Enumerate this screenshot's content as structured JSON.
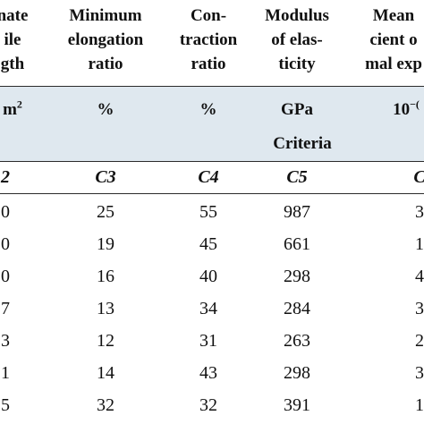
{
  "header": {
    "col1": [
      "nate",
      "ile",
      "gth"
    ],
    "col2": [
      "Minimum",
      "elongation",
      "ratio"
    ],
    "col3": [
      "Con-",
      "traction",
      "ratio"
    ],
    "col4": [
      "Modulus",
      "of elas-",
      "ticity"
    ],
    "col5": [
      "Mean",
      "cient o",
      "mal exp"
    ]
  },
  "units": {
    "col1_base": "m",
    "col1_sup": "2",
    "col2": "%",
    "col3": "%",
    "col4": "GPa",
    "col5_base": "10",
    "col5_sup": "−("
  },
  "criteria_label": "Criteria",
  "codes": [
    "2",
    "C3",
    "C4",
    "C5",
    "C"
  ],
  "rows": [
    [
      "0",
      "25",
      "55",
      "987",
      "3"
    ],
    [
      "0",
      "19",
      "45",
      "661",
      "1"
    ],
    [
      "0",
      "16",
      "40",
      "298",
      "4"
    ],
    [
      "7",
      "13",
      "34",
      "284",
      "3"
    ],
    [
      "3",
      "12",
      "31",
      "263",
      "2"
    ],
    [
      "1",
      "14",
      "43",
      "298",
      "3"
    ],
    [
      "5",
      "32",
      "32",
      "391",
      "1"
    ]
  ]
}
